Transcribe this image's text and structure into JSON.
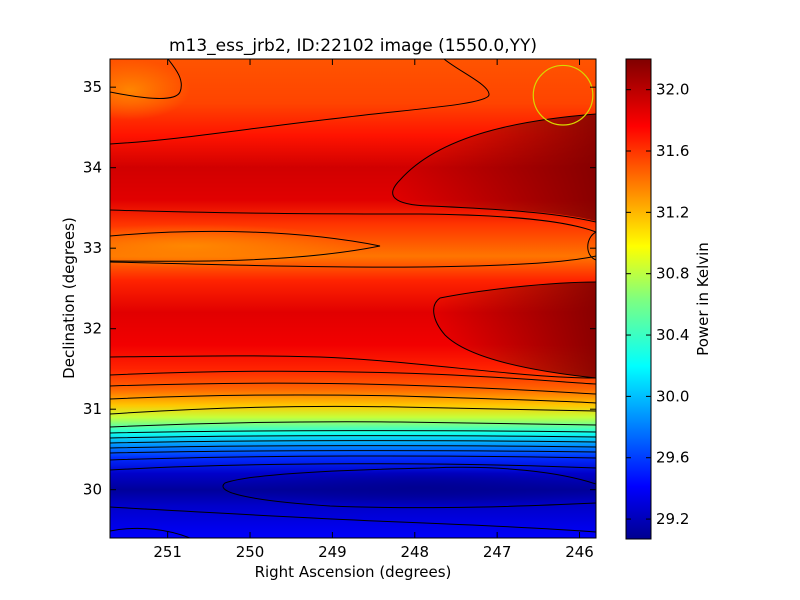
{
  "chart_data": {
    "type": "heatmap",
    "title": "m13_ess_jrb2, ID:22102 image (1550.0,YY)",
    "xlabel": "Right Ascension (degrees)",
    "ylabel": "Declination (degrees)",
    "xlim": [
      251.7,
      245.8
    ],
    "ylim": [
      29.4,
      35.35
    ],
    "x_ticks": [
      251,
      250,
      249,
      248,
      247,
      246
    ],
    "x_tick_labels": [
      "251",
      "250",
      "249",
      "248",
      "247",
      "246"
    ],
    "y_ticks": [
      30,
      31,
      32,
      33,
      34,
      35
    ],
    "y_tick_labels": [
      "30",
      "31",
      "32",
      "33",
      "34",
      "35"
    ],
    "colorbar": {
      "label": "Power in Kelvin",
      "range": [
        29.07,
        32.2
      ],
      "ticks": [
        29.2,
        29.6,
        30.0,
        30.4,
        30.8,
        31.2,
        31.6,
        32.0
      ],
      "tick_labels": [
        "29.2",
        "29.6",
        "30.0",
        "30.4",
        "30.8",
        "31.2",
        "31.6",
        "32.0"
      ],
      "colormap": "jet"
    },
    "grid": false,
    "contours": true,
    "marker": {
      "type": "circle",
      "center": [
        246.2,
        34.9
      ],
      "radius_deg": 0.37,
      "color": "#d8d800"
    },
    "profile_by_dec": [
      {
        "dec": 29.4,
        "value": 29.45
      },
      {
        "dec": 29.8,
        "value": 29.3
      },
      {
        "dec": 30.0,
        "value": 29.15
      },
      {
        "dec": 30.2,
        "value": 29.3
      },
      {
        "dec": 30.4,
        "value": 29.6
      },
      {
        "dec": 30.55,
        "value": 29.9
      },
      {
        "dec": 30.7,
        "value": 30.3
      },
      {
        "dec": 30.9,
        "value": 30.85
      },
      {
        "dec": 31.05,
        "value": 31.2
      },
      {
        "dec": 31.25,
        "value": 31.5
      },
      {
        "dec": 31.5,
        "value": 31.7
      },
      {
        "dec": 31.8,
        "value": 31.85
      },
      {
        "dec": 32.2,
        "value": 31.9
      },
      {
        "dec": 32.6,
        "value": 31.7
      },
      {
        "dec": 32.9,
        "value": 31.45
      },
      {
        "dec": 33.3,
        "value": 31.65
      },
      {
        "dec": 33.6,
        "value": 31.9
      },
      {
        "dec": 34.0,
        "value": 31.95
      },
      {
        "dec": 34.4,
        "value": 31.75
      },
      {
        "dec": 34.8,
        "value": 31.6
      },
      {
        "dec": 35.35,
        "value": 31.55
      }
    ]
  }
}
